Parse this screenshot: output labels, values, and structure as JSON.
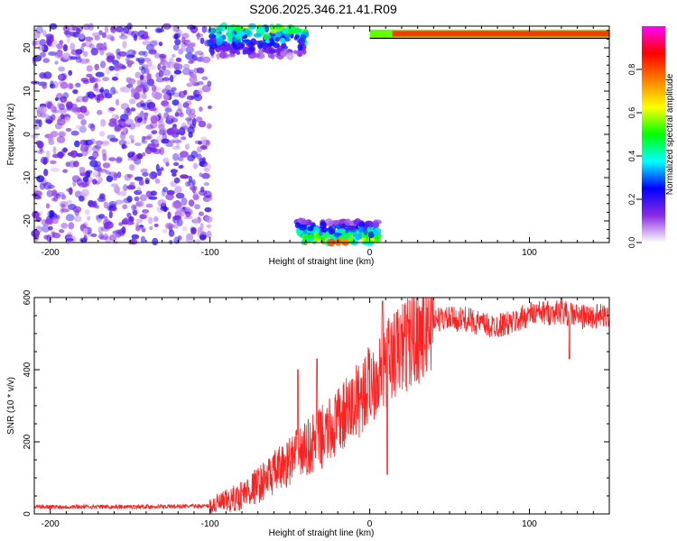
{
  "title": "S206.2025.346.21.41.R09",
  "chart_data": [
    {
      "type": "heatmap",
      "xlabel": "Height of straight line (km)",
      "ylabel": "Frequency (Hz)",
      "xlim": [
        -210,
        150
      ],
      "ylim": [
        -25,
        25
      ],
      "x_ticks": [
        -200,
        -100,
        0,
        100
      ],
      "y_ticks": [
        20,
        10,
        0,
        -10,
        -20
      ],
      "colorbar": {
        "label": "Normalized spectral amplitude",
        "range": [
          0,
          1
        ],
        "ticks": [
          "0.0",
          "0.2",
          "0.4",
          "0.6",
          "0.8"
        ],
        "colors": [
          "#ffffff",
          "#8a2be2",
          "#0000ff",
          "#00ffff",
          "#00ff00",
          "#ffff00",
          "#ff8000",
          "#ff0000",
          "#ff00ff"
        ]
      },
      "regions": [
        {
          "desc": "scattered low amplitude noise",
          "x": [
            -210,
            -100
          ],
          "y": [
            -25,
            25
          ],
          "amplitude": 0.15
        },
        {
          "desc": "upper edge burst",
          "x": [
            -100,
            -40
          ],
          "y": [
            18,
            25
          ],
          "amplitude": 0.4
        },
        {
          "desc": "lower edge burst",
          "x": [
            -45,
            5
          ],
          "y": [
            -25,
            -20
          ],
          "amplitude": 0.5
        },
        {
          "desc": "steady line at top edge",
          "x": [
            0,
            150
          ],
          "y": [
            22.5,
            24
          ],
          "amplitude": 0.85
        }
      ]
    },
    {
      "type": "line",
      "xlabel": "Height of straight line (km)",
      "ylabel": "SNR (10 * v/v)",
      "xlim": [
        -210,
        150
      ],
      "ylim": [
        0,
        600
      ],
      "x_ticks": [
        -200,
        -100,
        0,
        100
      ],
      "y_ticks": [
        0,
        200,
        400,
        600
      ],
      "color": "#ff2020",
      "trend": {
        "x": [
          -210,
          -150,
          -100,
          -85,
          -70,
          -55,
          -40,
          -25,
          -10,
          0,
          10,
          25,
          40,
          50,
          60,
          75,
          90,
          100,
          120,
          135,
          150
        ],
        "y": [
          20,
          20,
          22,
          40,
          80,
          130,
          180,
          230,
          300,
          360,
          420,
          480,
          540,
          540,
          540,
          520,
          530,
          555,
          560,
          545,
          550
        ]
      },
      "spikes": [
        {
          "x": -45,
          "y": 400
        },
        {
          "x": -33,
          "y": 430
        },
        {
          "x": 8,
          "y": 590
        },
        {
          "x": 11,
          "y": 110
        },
        {
          "x": 120,
          "y": 600
        },
        {
          "x": 125,
          "y": 430
        }
      ]
    }
  ]
}
